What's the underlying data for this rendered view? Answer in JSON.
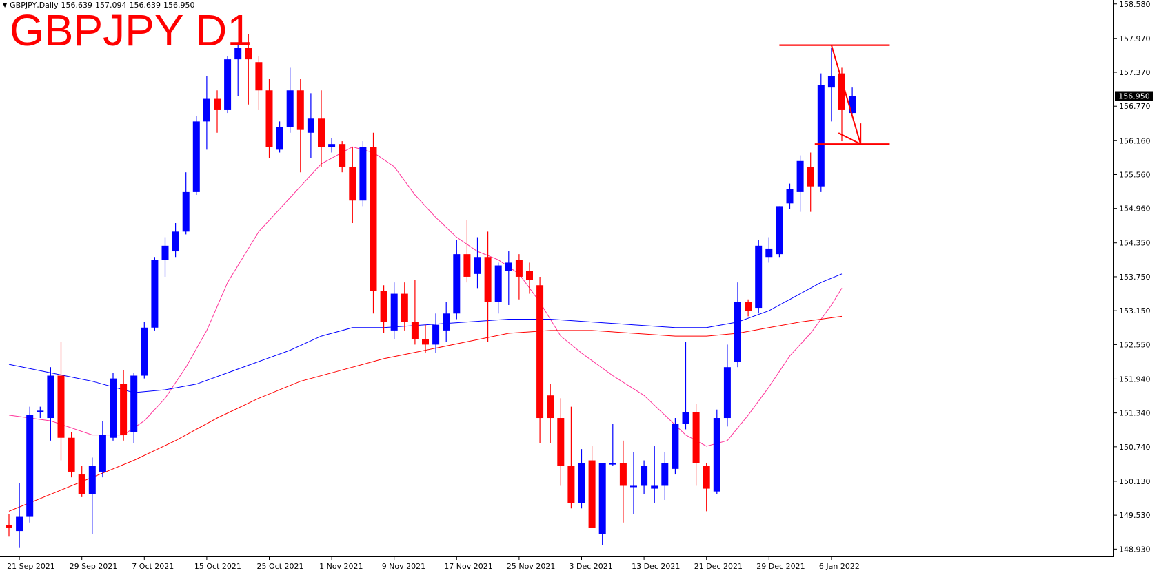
{
  "header": {
    "symbol": "GBPJPY,Daily",
    "open": "156.639",
    "high": "157.094",
    "low": "156.639",
    "close": "156.950"
  },
  "overlay_title": "GBPJPY D1",
  "current_price_label": "156.950",
  "colors": {
    "bull": "#0000ff",
    "bear": "#ff0000",
    "ma_fast": "#ff3399",
    "ma_mid": "#0000ff",
    "ma_slow": "#ff0000",
    "annotation": "#ff0000",
    "background": "#ffffff",
    "axis": "#000000"
  },
  "chart_data": {
    "type": "candlestick",
    "title": "GBPJPY D1",
    "timeframe": "Daily",
    "ylim": [
      148.8,
      158.65
    ],
    "y_ticks": [
      "158.580",
      "157.970",
      "157.370",
      "156.770",
      "156.160",
      "155.560",
      "154.960",
      "154.350",
      "153.750",
      "153.150",
      "152.550",
      "151.940",
      "151.340",
      "150.740",
      "150.130",
      "149.530",
      "148.930"
    ],
    "x_ticks": [
      {
        "label": "21 Sep 2021",
        "index": 1
      },
      {
        "label": "29 Sep 2021",
        "index": 7
      },
      {
        "label": "7 Oct 2021",
        "index": 13
      },
      {
        "label": "15 Oct 2021",
        "index": 19
      },
      {
        "label": "25 Oct 2021",
        "index": 25
      },
      {
        "label": "1 Nov 2021",
        "index": 31
      },
      {
        "label": "9 Nov 2021",
        "index": 37
      },
      {
        "label": "17 Nov 2021",
        "index": 43
      },
      {
        "label": "25 Nov 2021",
        "index": 49
      },
      {
        "label": "3 Dec 2021",
        "index": 55
      },
      {
        "label": "13 Dec 2021",
        "index": 61
      },
      {
        "label": "21 Dec 2021",
        "index": 67
      },
      {
        "label": "29 Dec 2021",
        "index": 73
      },
      {
        "label": "6 Jan 2022",
        "index": 79
      }
    ],
    "candles": [
      {
        "o": 149.35,
        "h": 149.55,
        "l": 149.15,
        "c": 149.3
      },
      {
        "o": 149.25,
        "h": 150.1,
        "l": 148.95,
        "c": 149.5
      },
      {
        "o": 149.5,
        "h": 151.45,
        "l": 149.4,
        "c": 151.3
      },
      {
        "o": 151.35,
        "h": 151.45,
        "l": 151.25,
        "c": 151.38
      },
      {
        "o": 151.25,
        "h": 152.15,
        "l": 150.85,
        "c": 152.0
      },
      {
        "o": 152.0,
        "h": 152.6,
        "l": 150.5,
        "c": 150.9
      },
      {
        "o": 150.9,
        "h": 151.0,
        "l": 150.2,
        "c": 150.3
      },
      {
        "o": 150.25,
        "h": 150.4,
        "l": 149.85,
        "c": 149.9
      },
      {
        "o": 149.9,
        "h": 150.55,
        "l": 149.2,
        "c": 150.4
      },
      {
        "o": 150.3,
        "h": 151.2,
        "l": 150.2,
        "c": 150.95
      },
      {
        "o": 150.9,
        "h": 152.05,
        "l": 150.85,
        "c": 151.95
      },
      {
        "o": 151.85,
        "h": 152.1,
        "l": 150.85,
        "c": 150.95
      },
      {
        "o": 151.0,
        "h": 152.05,
        "l": 150.8,
        "c": 152.0
      },
      {
        "o": 152.0,
        "h": 152.95,
        "l": 151.95,
        "c": 152.85
      },
      {
        "o": 152.85,
        "h": 154.1,
        "l": 152.8,
        "c": 154.05
      },
      {
        "o": 154.05,
        "h": 154.45,
        "l": 153.75,
        "c": 154.3
      },
      {
        "o": 154.2,
        "h": 154.7,
        "l": 154.1,
        "c": 154.55
      },
      {
        "o": 154.55,
        "h": 155.6,
        "l": 154.5,
        "c": 155.25
      },
      {
        "o": 155.25,
        "h": 156.6,
        "l": 155.2,
        "c": 156.5
      },
      {
        "o": 156.5,
        "h": 157.3,
        "l": 156.0,
        "c": 156.9
      },
      {
        "o": 156.9,
        "h": 157.05,
        "l": 156.3,
        "c": 156.7
      },
      {
        "o": 156.7,
        "h": 157.65,
        "l": 156.65,
        "c": 157.6
      },
      {
        "o": 157.6,
        "h": 157.85,
        "l": 156.95,
        "c": 157.8
      },
      {
        "o": 157.8,
        "h": 158.05,
        "l": 156.8,
        "c": 157.6
      },
      {
        "o": 157.55,
        "h": 157.65,
        "l": 156.7,
        "c": 157.05
      },
      {
        "o": 157.05,
        "h": 157.25,
        "l": 155.85,
        "c": 156.05
      },
      {
        "o": 156.0,
        "h": 156.5,
        "l": 155.95,
        "c": 156.4
      },
      {
        "o": 156.4,
        "h": 157.45,
        "l": 156.3,
        "c": 157.05
      },
      {
        "o": 157.05,
        "h": 157.25,
        "l": 155.6,
        "c": 156.35
      },
      {
        "o": 156.3,
        "h": 157.0,
        "l": 155.85,
        "c": 156.55
      },
      {
        "o": 156.55,
        "h": 157.05,
        "l": 155.7,
        "c": 156.05
      },
      {
        "o": 156.05,
        "h": 156.2,
        "l": 155.95,
        "c": 156.1
      },
      {
        "o": 156.1,
        "h": 156.15,
        "l": 155.6,
        "c": 155.7
      },
      {
        "o": 155.7,
        "h": 156.05,
        "l": 154.7,
        "c": 155.1
      },
      {
        "o": 155.1,
        "h": 156.15,
        "l": 155.0,
        "c": 156.05
      },
      {
        "o": 156.05,
        "h": 156.3,
        "l": 153.1,
        "c": 153.5
      },
      {
        "o": 153.5,
        "h": 153.6,
        "l": 152.75,
        "c": 152.95
      },
      {
        "o": 152.8,
        "h": 153.65,
        "l": 152.65,
        "c": 153.45
      },
      {
        "o": 153.45,
        "h": 153.65,
        "l": 152.8,
        "c": 152.95
      },
      {
        "o": 152.95,
        "h": 153.7,
        "l": 152.55,
        "c": 152.65
      },
      {
        "o": 152.65,
        "h": 152.9,
        "l": 152.4,
        "c": 152.55
      },
      {
        "o": 152.55,
        "h": 153.1,
        "l": 152.4,
        "c": 152.9
      },
      {
        "o": 152.8,
        "h": 153.3,
        "l": 152.6,
        "c": 153.1
      },
      {
        "o": 153.1,
        "h": 154.4,
        "l": 153.0,
        "c": 154.15
      },
      {
        "o": 154.15,
        "h": 154.75,
        "l": 153.65,
        "c": 153.75
      },
      {
        "o": 153.8,
        "h": 154.45,
        "l": 153.55,
        "c": 154.1
      },
      {
        "o": 154.1,
        "h": 154.55,
        "l": 152.6,
        "c": 153.3
      },
      {
        "o": 153.3,
        "h": 154.0,
        "l": 153.1,
        "c": 153.95
      },
      {
        "o": 153.85,
        "h": 154.2,
        "l": 153.25,
        "c": 154.0
      },
      {
        "o": 154.05,
        "h": 154.15,
        "l": 153.35,
        "c": 153.75
      },
      {
        "o": 153.85,
        "h": 154.0,
        "l": 153.45,
        "c": 153.7
      },
      {
        "o": 153.6,
        "h": 153.75,
        "l": 150.8,
        "c": 151.25
      },
      {
        "o": 151.65,
        "h": 151.85,
        "l": 150.8,
        "c": 151.25
      },
      {
        "o": 151.25,
        "h": 151.6,
        "l": 150.05,
        "c": 150.4
      },
      {
        "o": 150.4,
        "h": 151.45,
        "l": 149.65,
        "c": 149.75
      },
      {
        "o": 149.75,
        "h": 150.7,
        "l": 149.65,
        "c": 150.45
      },
      {
        "o": 150.5,
        "h": 150.75,
        "l": 149.3,
        "c": 149.3
      },
      {
        "o": 149.2,
        "h": 150.45,
        "l": 149.0,
        "c": 150.45
      },
      {
        "o": 150.45,
        "h": 151.15,
        "l": 150.4,
        "c": 150.45
      },
      {
        "o": 150.45,
        "h": 150.85,
        "l": 149.4,
        "c": 150.05
      },
      {
        "o": 150.05,
        "h": 150.65,
        "l": 149.55,
        "c": 150.05
      },
      {
        "o": 150.05,
        "h": 150.5,
        "l": 149.9,
        "c": 150.4
      },
      {
        "o": 150.0,
        "h": 150.75,
        "l": 149.75,
        "c": 150.05
      },
      {
        "o": 150.05,
        "h": 150.65,
        "l": 149.8,
        "c": 150.45
      },
      {
        "o": 150.35,
        "h": 151.25,
        "l": 150.25,
        "c": 151.15
      },
      {
        "o": 151.15,
        "h": 152.6,
        "l": 151.05,
        "c": 151.35
      },
      {
        "o": 151.35,
        "h": 151.5,
        "l": 150.05,
        "c": 150.45
      },
      {
        "o": 150.4,
        "h": 150.45,
        "l": 149.6,
        "c": 150.0
      },
      {
        "o": 149.95,
        "h": 151.4,
        "l": 149.9,
        "c": 151.25
      },
      {
        "o": 151.25,
        "h": 152.55,
        "l": 151.1,
        "c": 152.15
      },
      {
        "o": 152.25,
        "h": 153.65,
        "l": 152.15,
        "c": 153.3
      },
      {
        "o": 153.3,
        "h": 153.35,
        "l": 153.05,
        "c": 153.15
      },
      {
        "o": 153.2,
        "h": 154.4,
        "l": 153.1,
        "c": 154.3
      },
      {
        "o": 154.1,
        "h": 154.45,
        "l": 154.0,
        "c": 154.25
      },
      {
        "o": 154.15,
        "h": 155.0,
        "l": 154.1,
        "c": 155.0
      },
      {
        "o": 155.05,
        "h": 155.4,
        "l": 154.95,
        "c": 155.3
      },
      {
        "o": 155.25,
        "h": 155.9,
        "l": 154.9,
        "c": 155.8
      },
      {
        "o": 155.7,
        "h": 155.95,
        "l": 154.9,
        "c": 155.35
      },
      {
        "o": 155.35,
        "h": 157.35,
        "l": 155.25,
        "c": 157.15
      },
      {
        "o": 157.1,
        "h": 157.8,
        "l": 156.5,
        "c": 157.3
      },
      {
        "o": 157.35,
        "h": 157.45,
        "l": 156.15,
        "c": 156.7
      },
      {
        "o": 156.65,
        "h": 157.1,
        "l": 156.64,
        "c": 156.95
      }
    ],
    "moving_averages": [
      {
        "role": "fast",
        "points": [
          {
            "i": 0,
            "v": 151.3
          },
          {
            "i": 4,
            "v": 151.2
          },
          {
            "i": 8,
            "v": 150.95
          },
          {
            "i": 11,
            "v": 150.95
          },
          {
            "i": 13,
            "v": 151.2
          },
          {
            "i": 15,
            "v": 151.6
          },
          {
            "i": 17,
            "v": 152.15
          },
          {
            "i": 19,
            "v": 152.8
          },
          {
            "i": 21,
            "v": 153.65
          },
          {
            "i": 24,
            "v": 154.55
          },
          {
            "i": 27,
            "v": 155.15
          },
          {
            "i": 30,
            "v": 155.75
          },
          {
            "i": 33,
            "v": 156.05
          },
          {
            "i": 35,
            "v": 155.95
          },
          {
            "i": 37,
            "v": 155.7
          },
          {
            "i": 39,
            "v": 155.2
          },
          {
            "i": 41,
            "v": 154.8
          },
          {
            "i": 43,
            "v": 154.45
          },
          {
            "i": 45,
            "v": 154.2
          },
          {
            "i": 47,
            "v": 154.05
          },
          {
            "i": 49,
            "v": 153.8
          },
          {
            "i": 51,
            "v": 153.3
          },
          {
            "i": 53,
            "v": 152.7
          },
          {
            "i": 55,
            "v": 152.4
          },
          {
            "i": 58,
            "v": 152.0
          },
          {
            "i": 61,
            "v": 151.65
          },
          {
            "i": 63,
            "v": 151.3
          },
          {
            "i": 65,
            "v": 150.95
          },
          {
            "i": 67,
            "v": 150.75
          },
          {
            "i": 69,
            "v": 150.85
          },
          {
            "i": 71,
            "v": 151.3
          },
          {
            "i": 73,
            "v": 151.8
          },
          {
            "i": 75,
            "v": 152.35
          },
          {
            "i": 77,
            "v": 152.75
          },
          {
            "i": 79,
            "v": 153.25
          },
          {
            "i": 80,
            "v": 153.55
          }
        ]
      },
      {
        "role": "mid",
        "points": [
          {
            "i": 0,
            "v": 152.2
          },
          {
            "i": 4,
            "v": 152.05
          },
          {
            "i": 8,
            "v": 151.9
          },
          {
            "i": 12,
            "v": 151.7
          },
          {
            "i": 15,
            "v": 151.75
          },
          {
            "i": 18,
            "v": 151.85
          },
          {
            "i": 21,
            "v": 152.05
          },
          {
            "i": 24,
            "v": 152.25
          },
          {
            "i": 27,
            "v": 152.45
          },
          {
            "i": 30,
            "v": 152.7
          },
          {
            "i": 33,
            "v": 152.85
          },
          {
            "i": 36,
            "v": 152.85
          },
          {
            "i": 40,
            "v": 152.9
          },
          {
            "i": 44,
            "v": 152.95
          },
          {
            "i": 48,
            "v": 153.0
          },
          {
            "i": 52,
            "v": 153.0
          },
          {
            "i": 56,
            "v": 152.95
          },
          {
            "i": 60,
            "v": 152.9
          },
          {
            "i": 64,
            "v": 152.85
          },
          {
            "i": 67,
            "v": 152.85
          },
          {
            "i": 70,
            "v": 152.95
          },
          {
            "i": 73,
            "v": 153.15
          },
          {
            "i": 76,
            "v": 153.45
          },
          {
            "i": 78,
            "v": 153.65
          },
          {
            "i": 80,
            "v": 153.8
          }
        ]
      },
      {
        "role": "slow",
        "points": [
          {
            "i": 0,
            "v": 149.6
          },
          {
            "i": 4,
            "v": 149.9
          },
          {
            "i": 8,
            "v": 150.2
          },
          {
            "i": 12,
            "v": 150.5
          },
          {
            "i": 16,
            "v": 150.85
          },
          {
            "i": 20,
            "v": 151.25
          },
          {
            "i": 24,
            "v": 151.6
          },
          {
            "i": 28,
            "v": 151.9
          },
          {
            "i": 32,
            "v": 152.1
          },
          {
            "i": 36,
            "v": 152.3
          },
          {
            "i": 40,
            "v": 152.45
          },
          {
            "i": 44,
            "v": 152.6
          },
          {
            "i": 48,
            "v": 152.75
          },
          {
            "i": 52,
            "v": 152.8
          },
          {
            "i": 56,
            "v": 152.8
          },
          {
            "i": 60,
            "v": 152.75
          },
          {
            "i": 64,
            "v": 152.7
          },
          {
            "i": 67,
            "v": 152.7
          },
          {
            "i": 70,
            "v": 152.75
          },
          {
            "i": 73,
            "v": 152.85
          },
          {
            "i": 76,
            "v": 152.95
          },
          {
            "i": 80,
            "v": 153.05
          }
        ]
      }
    ],
    "annotations": {
      "resistance": {
        "price": 157.85,
        "from_index": 74,
        "to_index": 84.6
      },
      "support": {
        "price": 156.1,
        "from_index": 77.4,
        "to_index": 84.6
      },
      "arrow": {
        "from": {
          "i": 79,
          "v": 157.85
        },
        "to": {
          "i": 81.8,
          "v": 156.1
        }
      }
    }
  }
}
